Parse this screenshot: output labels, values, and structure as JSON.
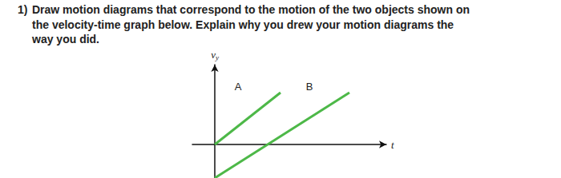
{
  "question": {
    "number": "1)",
    "lines": [
      "Draw motion diagrams that correspond to the motion of the two objects shown on",
      "the velocity-time graph below. Explain why you drew your motion diagrams the",
      "way you did."
    ]
  },
  "chart_data": {
    "type": "line",
    "xlabel": "t",
    "ylabel": {
      "text": "v",
      "subscript": "y"
    },
    "xlim": [
      -1.4,
      10.7
    ],
    "ylim": [
      -2.1,
      5.0
    ],
    "tick_labels": false,
    "grid": false,
    "series": [
      {
        "name": "A",
        "color": "#4db848",
        "x": [
          0,
          4.1
        ],
        "values": [
          0,
          3.25
        ]
      },
      {
        "name": "B",
        "color": "#4db848",
        "x": [
          0,
          8.4
        ],
        "values": [
          -2.1,
          3.25
        ]
      }
    ]
  }
}
